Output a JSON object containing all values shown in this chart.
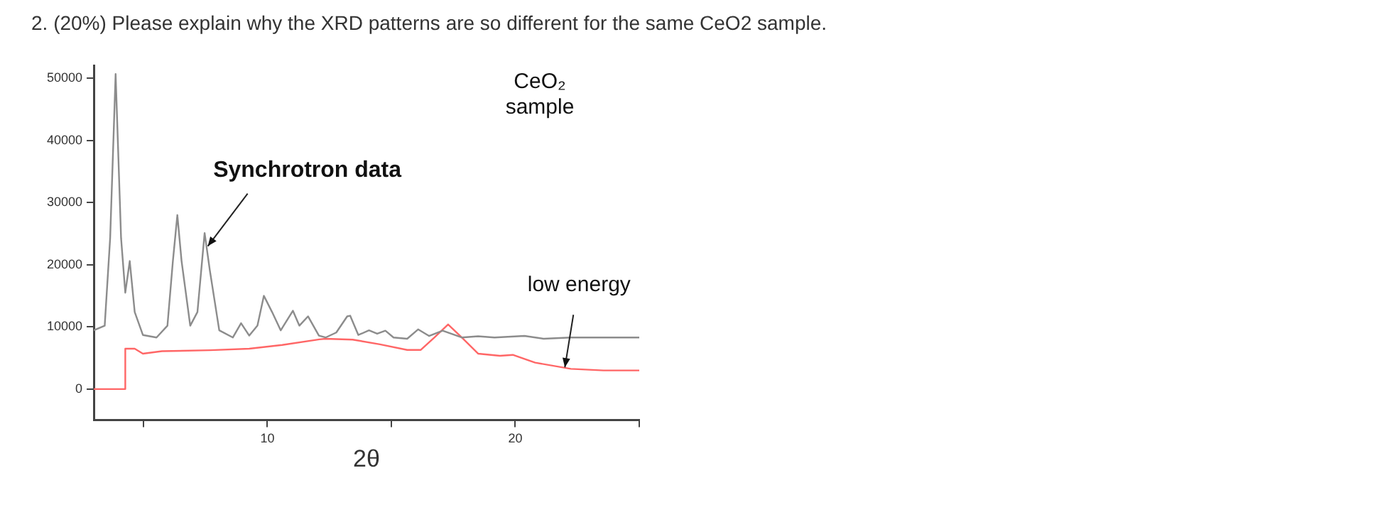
{
  "chart_data": {
    "type": "line",
    "title": "2. (20%) Please explain why the XRD patterns are so different for the same CeO2 sample.",
    "xlabel": "2θ",
    "xlim": [
      3,
      25
    ],
    "xticks": [
      {
        "value": 5,
        "label": null
      },
      10,
      {
        "value": 15,
        "label": null
      },
      20,
      {
        "value": 25,
        "label": null
      }
    ],
    "ylim": [
      -5000,
      52000
    ],
    "yticks": [
      0,
      10000,
      20000,
      30000,
      40000,
      50000
    ],
    "grid": false,
    "legend": false,
    "marker": "none",
    "line_style": "solid",
    "series": [
      {
        "color": "#8c8c8c",
        "x": [
          3.0,
          3.44,
          3.66,
          3.88,
          4.1,
          4.27,
          4.45,
          4.65,
          4.98,
          5.53,
          5.97,
          6.19,
          6.37,
          6.54,
          6.89,
          7.18,
          7.47,
          7.68,
          8.06,
          8.61,
          8.94,
          9.27,
          9.6,
          9.86,
          10.19,
          10.54,
          11.03,
          11.29,
          11.64,
          12.08,
          12.35,
          12.78,
          13.22,
          13.34,
          13.67,
          14.1,
          14.43,
          14.76,
          15.09,
          15.64,
          16.08,
          16.52,
          17.07,
          17.84,
          18.5,
          19.16,
          20.37,
          21.14,
          22.24,
          25.0
        ],
        "values": [
          9450,
          10200,
          24300,
          50700,
          24300,
          15500,
          20600,
          12400,
          8700,
          8300,
          10200,
          20600,
          28000,
          20600,
          10200,
          12400,
          25100,
          19100,
          9450,
          8300,
          10600,
          8600,
          10200,
          15000,
          12400,
          9450,
          12600,
          10200,
          11700,
          8600,
          8300,
          9100,
          11700,
          11800,
          8700,
          9450,
          8900,
          9400,
          8300,
          8100,
          9600,
          8550,
          9400,
          8300,
          8500,
          8300,
          8550,
          8100,
          8300,
          8300
        ]
      },
      {
        "color": "#ff6666",
        "x": [
          3.0,
          4.27,
          4.27,
          4.65,
          4.98,
          5.75,
          7.7,
          9.27,
          10.6,
          12.1,
          12.35,
          13.44,
          14.54,
          15.64,
          16.19,
          16.74,
          17.29,
          17.84,
          18.5,
          19.38,
          19.9,
          20.8,
          22.24,
          23.56,
          25.0
        ],
        "values": [
          0,
          0,
          6500,
          6500,
          5700,
          6100,
          6250,
          6500,
          7100,
          8000,
          8100,
          7950,
          7200,
          6300,
          6300,
          8300,
          10400,
          8300,
          5700,
          5350,
          5500,
          4250,
          3250,
          3000,
          3000
        ]
      }
    ],
    "annotations": [
      {
        "text": "Synchrotron data",
        "x": 7.6,
        "y": 23000
      },
      {
        "text": "low energy",
        "x": 22,
        "y": 3500
      },
      "CeO₂ sample"
    ]
  }
}
